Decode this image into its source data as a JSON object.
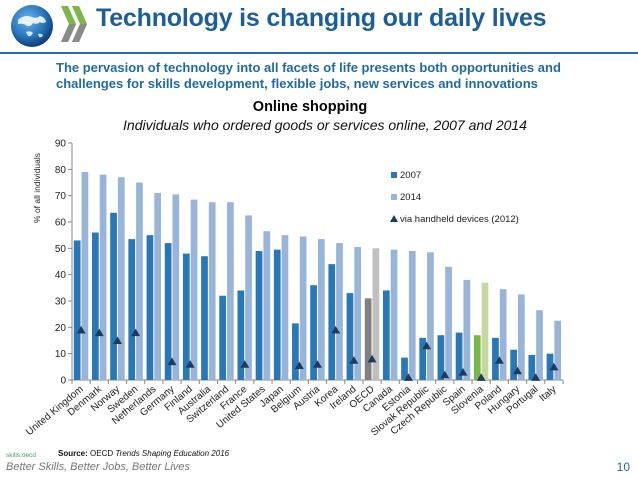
{
  "header": {
    "title": "Technology is changing our daily lives",
    "subtitle": "The pervasion of technology into all facets of life presents both opportunities and challenges for skills development, flexible jobs, new services and innovations",
    "logo_icon": "oecd-globe-logo"
  },
  "footer": {
    "source_label": "Source:",
    "source_org": "OECD",
    "source_publication": "Trends Shaping Education 2016",
    "skills_tag": "skills.oecd",
    "tagline": "Better Skills, Better Jobs, Better Lives",
    "page_number": "10"
  },
  "colors": {
    "title_blue": "#1c5f96",
    "series_2007": "#2878b8",
    "series_2014": "#98b4d8",
    "oecd_2007": "#808080",
    "oecd_2014": "#c0c0c0",
    "slovenia_2007": "#7ab648",
    "slovenia_2014": "#c4d8a0",
    "handheld_marker": "#1f3a5f"
  },
  "chart_data": {
    "type": "bar",
    "title": "Online shopping",
    "subtitle": "Individuals who ordered goods or services online, 2007 and 2014",
    "xlabel": "",
    "ylabel": "% of all individuals",
    "ylim": [
      0,
      90
    ],
    "yticks": [
      0,
      10,
      20,
      30,
      40,
      50,
      60,
      70,
      80,
      90
    ],
    "grid": false,
    "legend_position": "top-right",
    "categories": [
      "United Kingdom",
      "Denmark",
      "Norway",
      "Sweden",
      "Netherlands",
      "Germany",
      "Finland",
      "Australia",
      "Switzerland",
      "France",
      "United States",
      "Japan",
      "Belgium",
      "Austria",
      "Korea",
      "Ireland",
      "OECD",
      "Canada",
      "Estonia",
      "Slovak Republic",
      "Czech Republic",
      "Spain",
      "Slovenia",
      "Poland",
      "Hungary",
      "Portugal",
      "Italy"
    ],
    "highlight": {
      "OECD": "oecd",
      "Slovenia": "slovenia"
    },
    "series": [
      {
        "name": "2007",
        "type": "bar",
        "values": [
          53,
          56,
          63.5,
          53.5,
          55,
          52,
          48,
          47,
          32,
          34,
          49,
          49.5,
          21.5,
          36,
          44,
          33,
          31,
          34,
          8.5,
          16,
          17,
          18,
          17,
          16,
          11.5,
          9.5,
          10
        ]
      },
      {
        "name": "2014",
        "type": "bar",
        "values": [
          79,
          78,
          77,
          75,
          71,
          70.5,
          68.5,
          67.5,
          67.5,
          62.5,
          56.5,
          55,
          54.5,
          53.5,
          52,
          50.5,
          50,
          49.5,
          49,
          48.5,
          43,
          38,
          37,
          34.5,
          32.5,
          26.5,
          22.5
        ]
      },
      {
        "name": "via handheld devices (2012)",
        "type": "marker",
        "values": [
          19,
          18,
          15,
          18,
          null,
          7,
          6,
          null,
          null,
          6,
          null,
          null,
          5.5,
          6,
          19,
          7.5,
          8,
          null,
          1,
          13,
          2,
          3,
          1,
          7.5,
          3.5,
          1,
          5
        ]
      }
    ]
  }
}
